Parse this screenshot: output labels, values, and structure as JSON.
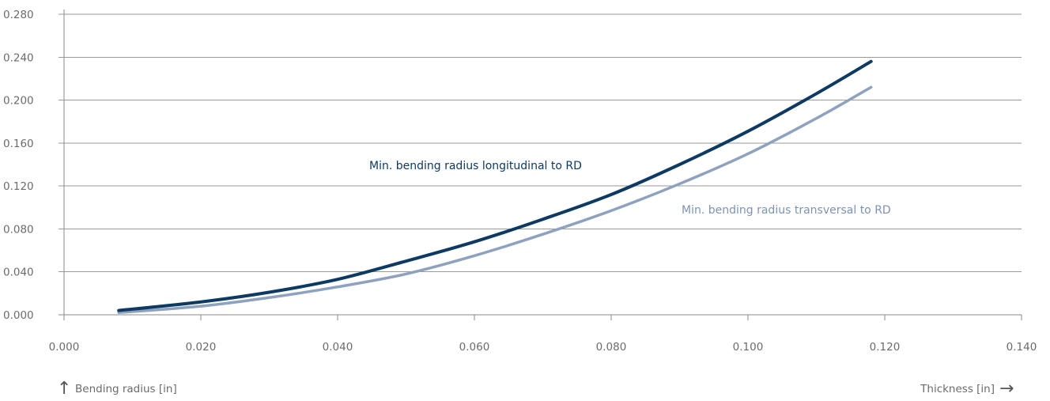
{
  "chart_data": {
    "type": "line",
    "xlabel": "Thickness [in]",
    "ylabel": "Bending radius [in]",
    "xlim": [
      0.0,
      0.14
    ],
    "ylim": [
      0.0,
      0.28
    ],
    "x_ticks": [
      "0.000",
      "0.020",
      "0.040",
      "0.060",
      "0.080",
      "0.100",
      "0.120",
      "0.140"
    ],
    "y_ticks": [
      "0.000",
      "0.040",
      "0.080",
      "0.120",
      "0.160",
      "0.200",
      "0.240",
      "0.280"
    ],
    "grid": "horizontal",
    "series": [
      {
        "name": "Min. bending radius longitudinal to RD",
        "color": "#0d3a63",
        "x": [
          0.008,
          0.02,
          0.03,
          0.04,
          0.05,
          0.06,
          0.07,
          0.08,
          0.09,
          0.1,
          0.11,
          0.118
        ],
        "y": [
          0.004,
          0.012,
          0.021,
          0.033,
          0.05,
          0.068,
          0.089,
          0.112,
          0.14,
          0.171,
          0.206,
          0.236
        ]
      },
      {
        "name": "Min. bending radius transversal to RD",
        "color": "#8ea2bf",
        "x": [
          0.008,
          0.02,
          0.03,
          0.04,
          0.05,
          0.06,
          0.07,
          0.08,
          0.09,
          0.1,
          0.11,
          0.118
        ],
        "y": [
          0.002,
          0.008,
          0.016,
          0.026,
          0.038,
          0.055,
          0.075,
          0.097,
          0.122,
          0.15,
          0.183,
          0.212
        ]
      }
    ]
  }
}
